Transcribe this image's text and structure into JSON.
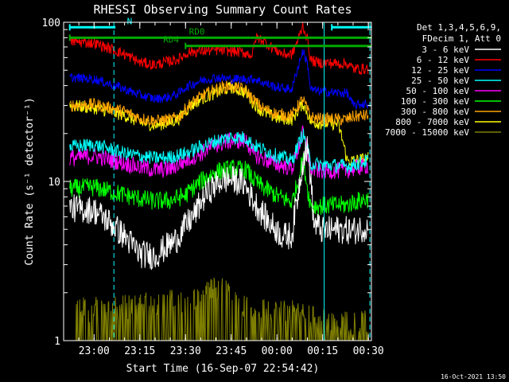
{
  "chart_data": {
    "type": "line",
    "title": "RHESSI Observing Summary Count Rates",
    "xlabel": "Start Time (16-Sep-07 22:54:42)",
    "ylabel": "Count Rate (s⁻¹ detector⁻¹)",
    "yscale": "log",
    "ylim": [
      1,
      100
    ],
    "xlim_minutes": [
      -5,
      96
    ],
    "x_tick_minutes": [
      5,
      20,
      35,
      50,
      65,
      80,
      95
    ],
    "x_tick_labels": [
      "23:00",
      "23:15",
      "23:30",
      "23:45",
      "00:00",
      "00:15",
      "00:30"
    ],
    "y_tick_values": [
      1,
      10,
      100
    ],
    "y_tick_labels": [
      "1",
      "10",
      "100"
    ],
    "legend": {
      "position": "top-right",
      "header_line1": "Det 1,3,4,5,6,9,",
      "header_line2": "FDecim 1, Att 0"
    },
    "series": [
      {
        "name": "3 - 6 keV",
        "color": "#ffffff",
        "x": [
          -3,
          5,
          15,
          20,
          25,
          32,
          38,
          42,
          47,
          50,
          54,
          56,
          58,
          62,
          67,
          70,
          72,
          74,
          75,
          77,
          80,
          85,
          90,
          95
        ],
        "y": [
          6.8,
          6.6,
          4.5,
          3.5,
          3.4,
          4.3,
          6.2,
          8.5,
          10.2,
          10.3,
          9.8,
          8.4,
          7.2,
          5.6,
          4.5,
          4.6,
          8.5,
          15,
          16,
          5.5,
          4.9,
          5,
          4.9,
          5.2
        ]
      },
      {
        "name": "6 - 12 keV",
        "color": "#ff0000",
        "x": [
          -3,
          5,
          15,
          20,
          25,
          30,
          33,
          36,
          45,
          50,
          55,
          57,
          58,
          60,
          63,
          67,
          70,
          72,
          73.5,
          75,
          76,
          78,
          85,
          88,
          90,
          95
        ],
        "y": [
          76,
          74,
          63,
          56,
          54,
          57,
          59,
          65,
          67,
          66,
          64,
          62,
          80,
          78,
          70,
          63,
          63,
          78,
          95,
          78,
          58,
          56,
          55,
          55,
          51,
          51
        ]
      },
      {
        "name": "12 - 25 keV",
        "color": "#0000ff",
        "x": [
          -3,
          5,
          15,
          20,
          25,
          30,
          33,
          35,
          40,
          45,
          50,
          55,
          57,
          58,
          60,
          65,
          70,
          72,
          73.5,
          75,
          76,
          78,
          85,
          88,
          90,
          95
        ],
        "y": [
          45,
          44,
          38,
          35,
          33,
          34,
          36,
          39,
          43,
          45,
          44,
          44,
          44,
          44,
          42,
          39,
          38,
          53,
          66,
          55,
          38,
          37,
          36,
          36,
          30,
          31
        ]
      },
      {
        "name": "25 - 50 keV",
        "color": "#00ffff",
        "x": [
          -3,
          5,
          15,
          20,
          25,
          30,
          35,
          40,
          45,
          50,
          55,
          57,
          60,
          65,
          70,
          72,
          73.5,
          75,
          76,
          78,
          85,
          88,
          90,
          95
        ],
        "y": [
          16.5,
          17,
          15,
          14.5,
          14,
          14.2,
          15,
          16.5,
          18,
          19,
          18.8,
          17,
          16,
          14.5,
          13.5,
          17,
          20,
          16,
          13,
          12.8,
          12.6,
          12.5,
          12.7,
          13.5
        ]
      },
      {
        "name": "50 - 100 keV",
        "color": "#ff00ff",
        "x": [
          -3,
          5,
          15,
          20,
          25,
          30,
          35,
          40,
          45,
          50,
          55,
          57,
          60,
          65,
          70,
          72,
          73.5,
          75,
          76,
          78,
          85,
          88,
          90,
          95
        ],
        "y": [
          14,
          14.5,
          13,
          12.3,
          11.8,
          12,
          13.5,
          15,
          17,
          18,
          18,
          15,
          14,
          12.8,
          12.2,
          16,
          20,
          15.5,
          12,
          11.7,
          11.7,
          11.8,
          12,
          12.6
        ]
      },
      {
        "name": "100 - 300 keV",
        "color": "#00ff00",
        "x": [
          -3,
          5,
          15,
          20,
          25,
          30,
          35,
          40,
          45,
          50,
          55,
          57,
          60,
          65,
          70,
          72,
          73.5,
          75,
          76,
          78,
          85,
          88,
          90,
          95
        ],
        "y": [
          9,
          9.2,
          8.2,
          7.8,
          7.5,
          7.6,
          8.2,
          10,
          11.5,
          12,
          11.8,
          10.4,
          9.3,
          8.1,
          7.4,
          10,
          14,
          9,
          7.2,
          7,
          7.1,
          7.1,
          7.4,
          7.8
        ]
      },
      {
        "name": "300 - 800 keV",
        "color": "#ffa500",
        "x": [
          -3,
          5,
          15,
          20,
          25,
          30,
          33,
          36,
          40,
          45,
          50,
          55,
          57,
          60,
          65,
          70,
          72,
          73.5,
          75,
          76,
          78,
          85,
          88,
          90,
          95
        ],
        "y": [
          30,
          30.5,
          27.5,
          25,
          24,
          24.5,
          25.5,
          30,
          34,
          38,
          40,
          37,
          33,
          29,
          26.5,
          26,
          30,
          33,
          28,
          25.5,
          24.8,
          24.5,
          24.5,
          25.5,
          26
        ]
      },
      {
        "name": "800 - 7000 keV",
        "color": "#ffff00",
        "x": [
          -3,
          5,
          15,
          20,
          25,
          30,
          33,
          36,
          40,
          45,
          50,
          55,
          57,
          60,
          65,
          70,
          72,
          73.5,
          75,
          76,
          78,
          85,
          88,
          90,
          95
        ],
        "y": [
          30,
          29,
          26,
          23.5,
          22.5,
          23.5,
          25,
          29,
          33,
          36,
          39,
          36,
          31.5,
          27.5,
          25,
          24.5,
          28,
          31,
          27,
          23.8,
          23.3,
          23,
          13.5,
          13.5,
          14
        ]
      },
      {
        "name": "7000 - 15000 keV",
        "color": "#7f7f00",
        "x": [
          -1,
          10,
          40,
          45,
          50,
          55,
          65,
          70,
          75,
          85,
          95
        ],
        "y": [
          1.45,
          1.45,
          1.7,
          2.0,
          1.8,
          1.5,
          1.35,
          1.45,
          1.3,
          1.2,
          1.2
        ]
      }
    ],
    "annotations": [
      {
        "label": "N",
        "color": "#00ffff",
        "x_start": -3,
        "x_end": 12,
        "y": 93
      },
      {
        "label": "",
        "color": "#00ffff",
        "x_start": 83,
        "x_end": 96,
        "y": 93
      },
      {
        "label": "RD0",
        "color": "#00aa00",
        "x_start": -3,
        "x_end": 96,
        "y": 80
      },
      {
        "label": "RD4",
        "color": "#00aa00",
        "x_start": 35,
        "x_end": 96,
        "y": 71
      }
    ],
    "vlines": [
      {
        "x": -5,
        "color": "#00ffff",
        "style": "solid"
      },
      {
        "x": 11.5,
        "color": "#00ffff",
        "style": "dashed"
      },
      {
        "x": 80.5,
        "color": "#00ffff",
        "style": "solid"
      },
      {
        "x": 95.5,
        "color": "#00ffff",
        "style": "dashed"
      }
    ]
  },
  "footer": {
    "timestamp": "16-Oct-2021 13:50"
  }
}
